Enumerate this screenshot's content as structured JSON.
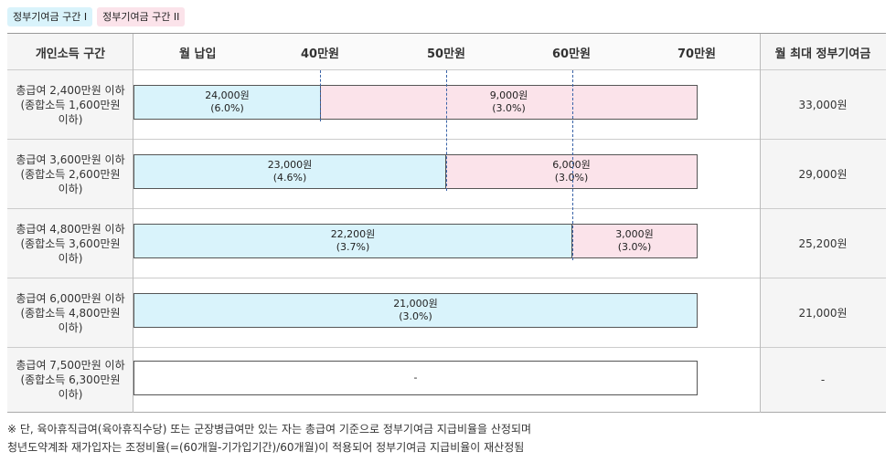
{
  "legend": {
    "tier1": "정부기여금 구간 I",
    "tier2": "정부기여금 구간 II"
  },
  "header": {
    "income_col": "개인소득 구간",
    "payment": "월 납입",
    "t40": "40만원",
    "t50": "50만원",
    "t60": "60만원",
    "t70": "70만원",
    "max_col": "월 최대 정부기여금"
  },
  "rows": [
    {
      "line1": "총급여 2,400만원 이하",
      "line2": "(종합소득 1,600만원",
      "line3": "이하)",
      "seg1_amount": "24,000원",
      "seg1_rate": "(6.0%)",
      "seg2_amount": "9,000원",
      "seg2_rate": "(3.0%)",
      "max": "33,000원"
    },
    {
      "line1": "총급여 3,600만원 이하",
      "line2": "(종합소득 2,600만원",
      "line3": "이하)",
      "seg1_amount": "23,000원",
      "seg1_rate": "(4.6%)",
      "seg2_amount": "6,000원",
      "seg2_rate": "(3.0%)",
      "max": "29,000원"
    },
    {
      "line1": "총급여 4,800만원 이하",
      "line2": "(종합소득 3,600만원",
      "line3": "이하)",
      "seg1_amount": "22,200원",
      "seg1_rate": "(3.7%)",
      "seg2_amount": "3,000원",
      "seg2_rate": "(3.0%)",
      "max": "25,200원"
    },
    {
      "line1": "총급여 6,000만원 이하",
      "line2": "(종합소득 4,800만원",
      "line3": "이하)",
      "seg1_amount": "21,000원",
      "seg1_rate": "(3.0%)",
      "max": "21,000원"
    },
    {
      "line1": "총급여 7,500만원 이하",
      "line2": "(종합소득 6,300만원",
      "line3": "이하)",
      "bar_text": "-",
      "max": "-"
    }
  ],
  "footnote": {
    "line1": "※ 단, 육아휴직급여(육아휴직수당) 또는 군장병급여만 있는 자는 총급여 기준으로 정부기여금 지급비율을 산정되며",
    "line2": "청년도약계좌 재가입자는 조정비율(=(60개월-기가입기간)/60개월)이 적용되어 정부기여금 지급비율이 재산정됨"
  }
}
